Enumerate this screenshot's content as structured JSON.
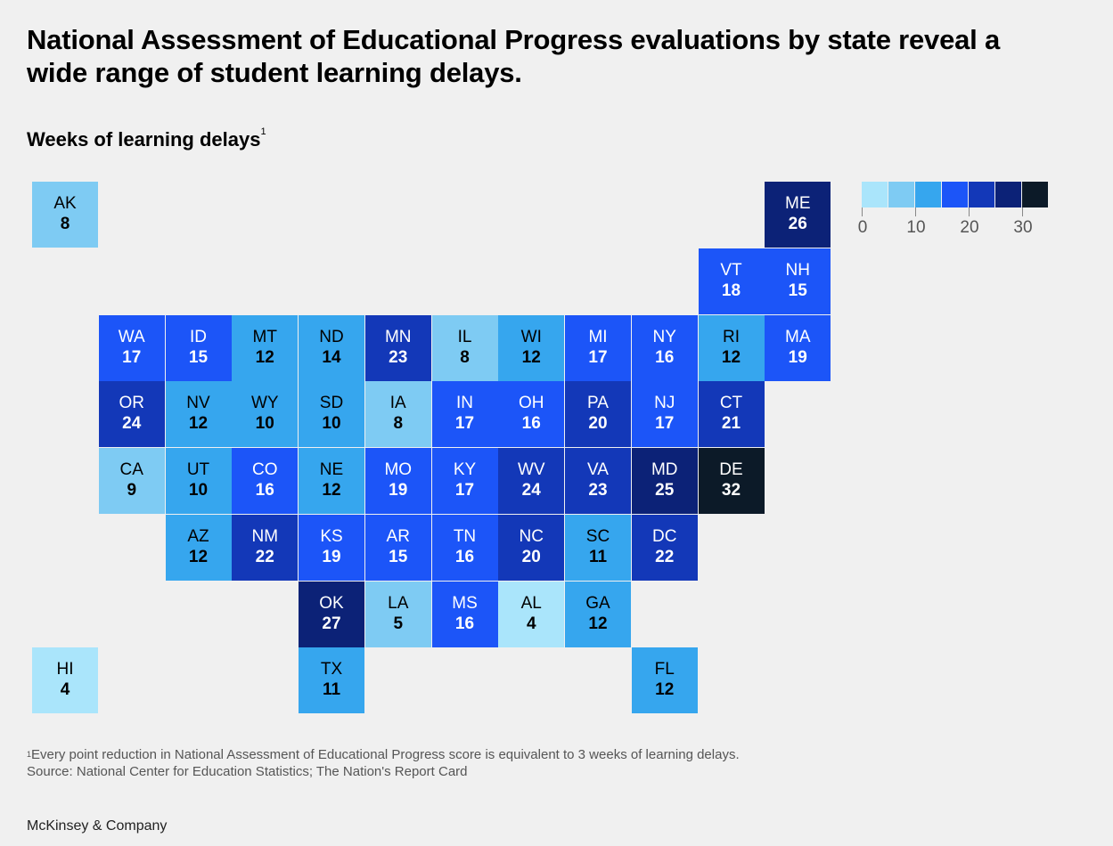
{
  "title": "National Assessment of Educational Progress evaluations by state reveal a wide range of student learning delays.",
  "subtitle": "Weeks of learning delays",
  "subtitle_note_marker": "1",
  "footnote": {
    "marker": "1",
    "text": "Every point reduction in National Assessment of Educational Progress score is equivalent to 3 weeks of learning delays.",
    "source": "Source: National Center for Education Statistics; The Nation's Report Card"
  },
  "brand": "McKinsey & Company",
  "colors": {
    "background": "#f0f0f0",
    "scale": [
      "#aae5fb",
      "#7ecbf3",
      "#36a6ee",
      "#1c55f8",
      "#1338b8",
      "#0c2277",
      "#0c1a28"
    ],
    "text_dark": "#000000",
    "text_light": "#ffffff"
  },
  "legend": {
    "bins": 7,
    "ticks": [
      "0",
      "10",
      "20",
      "30"
    ],
    "tick_values": [
      0,
      10,
      20,
      30
    ],
    "max": 35
  },
  "chart_data": {
    "type": "heatmap",
    "unit": "weeks",
    "tiles": [
      {
        "state": "AK",
        "value": 8,
        "row": 0,
        "col": 0
      },
      {
        "state": "ME",
        "value": 26,
        "row": 0,
        "col": 11
      },
      {
        "state": "VT",
        "value": 18,
        "row": 1,
        "col": 10
      },
      {
        "state": "NH",
        "value": 15,
        "row": 1,
        "col": 11
      },
      {
        "state": "WA",
        "value": 17,
        "row": 2,
        "col": 1
      },
      {
        "state": "ID",
        "value": 15,
        "row": 2,
        "col": 2
      },
      {
        "state": "MT",
        "value": 12,
        "row": 2,
        "col": 3
      },
      {
        "state": "ND",
        "value": 14,
        "row": 2,
        "col": 4
      },
      {
        "state": "MN",
        "value": 23,
        "row": 2,
        "col": 5
      },
      {
        "state": "IL",
        "value": 8,
        "row": 2,
        "col": 6
      },
      {
        "state": "WI",
        "value": 12,
        "row": 2,
        "col": 7
      },
      {
        "state": "MI",
        "value": 17,
        "row": 2,
        "col": 8
      },
      {
        "state": "NY",
        "value": 16,
        "row": 2,
        "col": 9
      },
      {
        "state": "RI",
        "value": 12,
        "row": 2,
        "col": 10
      },
      {
        "state": "MA",
        "value": 19,
        "row": 2,
        "col": 11
      },
      {
        "state": "OR",
        "value": 24,
        "row": 3,
        "col": 1
      },
      {
        "state": "NV",
        "value": 12,
        "row": 3,
        "col": 2
      },
      {
        "state": "WY",
        "value": 10,
        "row": 3,
        "col": 3
      },
      {
        "state": "SD",
        "value": 10,
        "row": 3,
        "col": 4
      },
      {
        "state": "IA",
        "value": 8,
        "row": 3,
        "col": 5
      },
      {
        "state": "IN",
        "value": 17,
        "row": 3,
        "col": 6
      },
      {
        "state": "OH",
        "value": 16,
        "row": 3,
        "col": 7
      },
      {
        "state": "PA",
        "value": 20,
        "row": 3,
        "col": 8
      },
      {
        "state": "NJ",
        "value": 17,
        "row": 3,
        "col": 9
      },
      {
        "state": "CT",
        "value": 21,
        "row": 3,
        "col": 10
      },
      {
        "state": "CA",
        "value": 9,
        "row": 4,
        "col": 1
      },
      {
        "state": "UT",
        "value": 10,
        "row": 4,
        "col": 2
      },
      {
        "state": "CO",
        "value": 16,
        "row": 4,
        "col": 3
      },
      {
        "state": "NE",
        "value": 12,
        "row": 4,
        "col": 4
      },
      {
        "state": "MO",
        "value": 19,
        "row": 4,
        "col": 5
      },
      {
        "state": "KY",
        "value": 17,
        "row": 4,
        "col": 6
      },
      {
        "state": "WV",
        "value": 24,
        "row": 4,
        "col": 7
      },
      {
        "state": "VA",
        "value": 23,
        "row": 4,
        "col": 8
      },
      {
        "state": "MD",
        "value": 25,
        "row": 4,
        "col": 9
      },
      {
        "state": "DE",
        "value": 32,
        "row": 4,
        "col": 10
      },
      {
        "state": "AZ",
        "value": 12,
        "row": 5,
        "col": 2
      },
      {
        "state": "NM",
        "value": 22,
        "row": 5,
        "col": 3
      },
      {
        "state": "KS",
        "value": 19,
        "row": 5,
        "col": 4
      },
      {
        "state": "AR",
        "value": 15,
        "row": 5,
        "col": 5
      },
      {
        "state": "TN",
        "value": 16,
        "row": 5,
        "col": 6
      },
      {
        "state": "NC",
        "value": 20,
        "row": 5,
        "col": 7
      },
      {
        "state": "SC",
        "value": 11,
        "row": 5,
        "col": 8
      },
      {
        "state": "DC",
        "value": 22,
        "row": 5,
        "col": 9
      },
      {
        "state": "OK",
        "value": 27,
        "row": 6,
        "col": 4
      },
      {
        "state": "LA",
        "value": 5,
        "row": 6,
        "col": 5
      },
      {
        "state": "MS",
        "value": 16,
        "row": 6,
        "col": 6
      },
      {
        "state": "AL",
        "value": 4,
        "row": 6,
        "col": 7
      },
      {
        "state": "GA",
        "value": 12,
        "row": 6,
        "col": 8
      },
      {
        "state": "HI",
        "value": 4,
        "row": 7,
        "col": 0
      },
      {
        "state": "TX",
        "value": 11,
        "row": 7,
        "col": 4
      },
      {
        "state": "FL",
        "value": 12,
        "row": 7,
        "col": 9
      }
    ]
  }
}
